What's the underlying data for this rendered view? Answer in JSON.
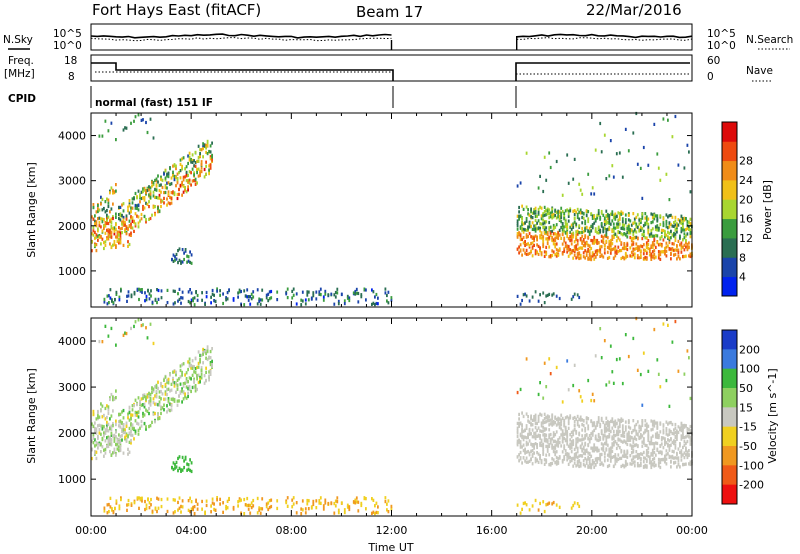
{
  "header": {
    "station": "Fort Hays East (fitACF)",
    "beam": "Beam 17",
    "date": "22/Mar/2016"
  },
  "labels": {
    "nsky": "N.Sky",
    "nsearch": "N.Search",
    "freq_line1": "Freq.",
    "freq_line2": "[MHz]",
    "nave": "Nave",
    "cpid": "CPID",
    "cpid_value": "normal (fast) 151 IF",
    "nsky_top": "10^5",
    "nsky_bottom": "10^0",
    "nsearch_top": "10^5",
    "nsearch_bottom": "10^0",
    "freq_top": "18",
    "freq_bottom": "8",
    "nave_top": "60",
    "nave_bottom": "0"
  },
  "chart_data": [
    {
      "type": "heatmap",
      "panel": "power",
      "ylabel": "Slant Range [km]",
      "ylim": [
        200,
        4500
      ],
      "yticks": [
        "1000",
        "2000",
        "3000",
        "4000"
      ],
      "colorbar_label": "Power [dB]",
      "colorbar_ticks": [
        "4",
        "8",
        "12",
        "16",
        "20",
        "24",
        "28"
      ],
      "colors": [
        "#0022ee",
        "#1a44aa",
        "#2a6e52",
        "#3a9c3e",
        "#a8d630",
        "#f0c018",
        "#f08c18",
        "#ee4a10",
        "#dd0a0a"
      ]
    },
    {
      "type": "heatmap",
      "panel": "velocity",
      "ylabel": "Slant Range [km]",
      "xlabel": "Time UT",
      "ylim": [
        200,
        4500
      ],
      "yticks": [
        "1000",
        "2000",
        "3000",
        "4000"
      ],
      "xticks": [
        "00:00",
        "04:00",
        "08:00",
        "12:00",
        "16:00",
        "20:00",
        "00:00"
      ],
      "colorbar_label": "Velocity [m s^-1]",
      "colorbar_ticks": [
        "200",
        "100",
        "50",
        "15",
        "-15",
        "-50",
        "-100",
        "-200"
      ],
      "colors": [
        "#1a3cc8",
        "#3a7ade",
        "#3cb83c",
        "#8ed060",
        "#c8c8c0",
        "#f0d020",
        "#f09820",
        "#f05a18",
        "#ee1010"
      ]
    }
  ]
}
